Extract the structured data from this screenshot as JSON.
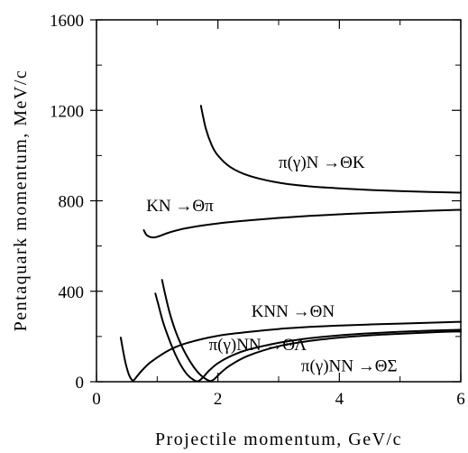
{
  "chart_data": {
    "type": "line",
    "title": "",
    "xlabel": "Projectile momentum, GeV/c",
    "ylabel": "Pentaquark momentum, MeV/c",
    "xlim": [
      0,
      6
    ],
    "ylim": [
      0,
      1600
    ],
    "x_ticks": [
      "0",
      "2",
      "4",
      "6"
    ],
    "y_ticks": [
      "0",
      "400",
      "800",
      "1200",
      "1600"
    ],
    "grid": false,
    "legend": "none",
    "series": [
      {
        "name": "π(γ)N →ΘK",
        "points": [
          [
            1.72,
            1220
          ],
          [
            1.8,
            1120
          ],
          [
            1.9,
            1045
          ],
          [
            2.0,
            1000
          ],
          [
            2.2,
            950
          ],
          [
            2.5,
            912
          ],
          [
            3.0,
            880
          ],
          [
            3.5,
            864
          ],
          [
            4.0,
            855
          ],
          [
            4.5,
            848
          ],
          [
            5.0,
            843
          ],
          [
            5.5,
            839
          ],
          [
            6.0,
            836
          ]
        ]
      },
      {
        "name": "KN →Θπ",
        "points": [
          [
            0.78,
            670
          ],
          [
            0.82,
            650
          ],
          [
            0.88,
            640
          ],
          [
            0.95,
            638
          ],
          [
            1.05,
            645
          ],
          [
            1.2,
            660
          ],
          [
            1.5,
            680
          ],
          [
            2.0,
            700
          ],
          [
            2.5,
            713
          ],
          [
            3.0,
            724
          ],
          [
            3.5,
            733
          ],
          [
            4.0,
            740
          ],
          [
            4.5,
            746
          ],
          [
            5.0,
            751
          ],
          [
            5.5,
            756
          ],
          [
            6.0,
            760
          ]
        ]
      },
      {
        "name": "KNN →ΘN",
        "points": [
          [
            0.4,
            195
          ],
          [
            0.45,
            120
          ],
          [
            0.5,
            60
          ],
          [
            0.55,
            22
          ],
          [
            0.6,
            5
          ],
          [
            0.65,
            18
          ],
          [
            0.75,
            50
          ],
          [
            0.9,
            88
          ],
          [
            1.2,
            140
          ],
          [
            1.5,
            172
          ],
          [
            2.0,
            203
          ],
          [
            2.5,
            220
          ],
          [
            3.0,
            233
          ],
          [
            3.5,
            242
          ],
          [
            4.0,
            248
          ],
          [
            4.5,
            253
          ],
          [
            5.0,
            257
          ],
          [
            5.5,
            261
          ],
          [
            6.0,
            265
          ]
        ]
      },
      {
        "name": "π(γ)NN →ΘΛ",
        "points": [
          [
            0.97,
            390
          ],
          [
            1.02,
            340
          ],
          [
            1.1,
            260
          ],
          [
            1.2,
            185
          ],
          [
            1.3,
            120
          ],
          [
            1.4,
            68
          ],
          [
            1.5,
            30
          ],
          [
            1.6,
            8
          ],
          [
            1.67,
            2
          ],
          [
            1.75,
            18
          ],
          [
            1.85,
            48
          ],
          [
            2.0,
            82
          ],
          [
            2.25,
            118
          ],
          [
            2.5,
            142
          ],
          [
            3.0,
            172
          ],
          [
            3.5,
            192
          ],
          [
            4.0,
            205
          ],
          [
            4.5,
            214
          ],
          [
            5.0,
            221
          ],
          [
            5.5,
            226
          ],
          [
            6.0,
            230
          ]
        ]
      },
      {
        "name": "π(γ)NN →ΘΣ",
        "points": [
          [
            1.08,
            450
          ],
          [
            1.12,
            400
          ],
          [
            1.2,
            310
          ],
          [
            1.3,
            225
          ],
          [
            1.4,
            160
          ],
          [
            1.5,
            108
          ],
          [
            1.6,
            66
          ],
          [
            1.7,
            33
          ],
          [
            1.8,
            12
          ],
          [
            1.88,
            3
          ],
          [
            1.95,
            14
          ],
          [
            2.05,
            40
          ],
          [
            2.2,
            72
          ],
          [
            2.5,
            115
          ],
          [
            3.0,
            157
          ],
          [
            3.5,
            180
          ],
          [
            4.0,
            195
          ],
          [
            4.5,
            205
          ],
          [
            5.0,
            212
          ],
          [
            5.5,
            218
          ],
          [
            6.0,
            222
          ]
        ]
      }
    ],
    "curve_labels": [
      {
        "text": "π(γ)N →ΘK",
        "x": 3.0,
        "y": 945
      },
      {
        "text": "KN →Θπ",
        "x": 0.82,
        "y": 755
      },
      {
        "text": "KNN →ΘN",
        "x": 2.55,
        "y": 288
      },
      {
        "text": "π(γ)NN →ΘΛ",
        "x": 1.85,
        "y": 140
      },
      {
        "text": "π(γ)NN →ΘΣ",
        "x": 3.37,
        "y": 45
      }
    ]
  }
}
